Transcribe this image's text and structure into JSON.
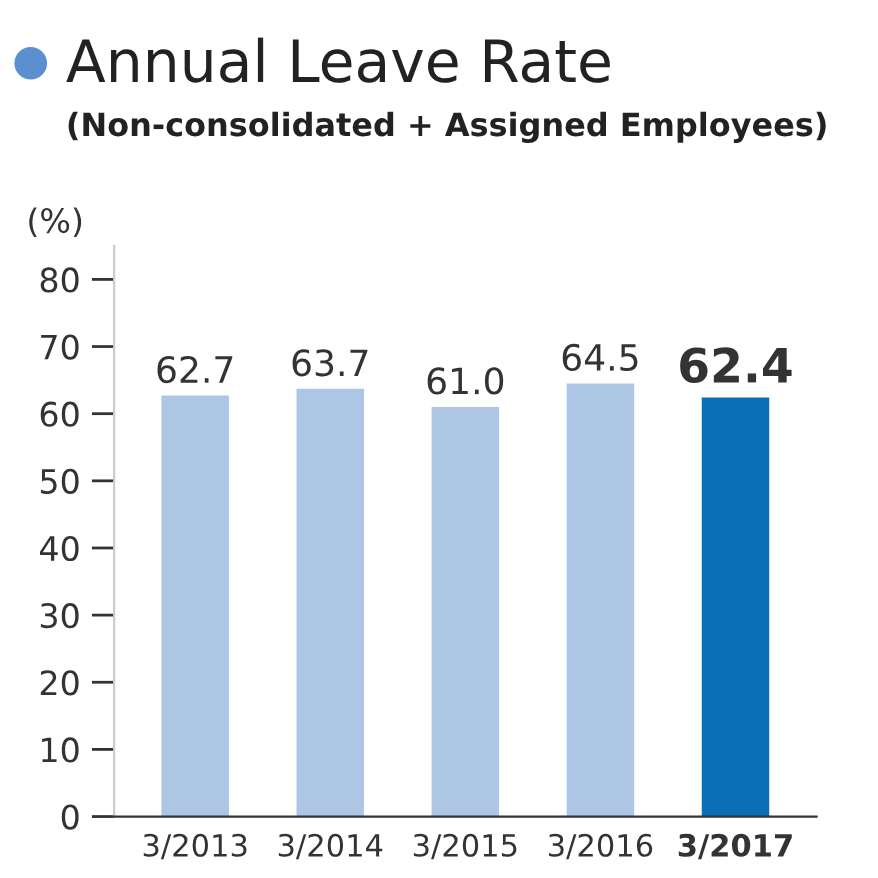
{
  "chart_data": {
    "type": "bar",
    "title": "Annual Leave Rate",
    "subtitle": "(Non-consolidated + Assigned Employees)",
    "ylabel": "(%)",
    "categories": [
      "3/2013",
      "3/2014",
      "3/2015",
      "3/2016",
      "3/2017"
    ],
    "values": [
      62.7,
      63.7,
      61.0,
      64.5,
      62.4
    ],
    "colors": [
      "#aec6e6",
      "#aec6e6",
      "#aec6e6",
      "#aec6e6",
      "#0b6fb8"
    ],
    "ylim": [
      0,
      85
    ],
    "yticks": [
      0,
      10,
      20,
      30,
      40,
      50,
      60,
      70,
      80
    ],
    "value_labels": [
      "62.7",
      "63.7",
      "61.0",
      "64.5",
      "62.4"
    ],
    "grid": false,
    "legend": false
  }
}
